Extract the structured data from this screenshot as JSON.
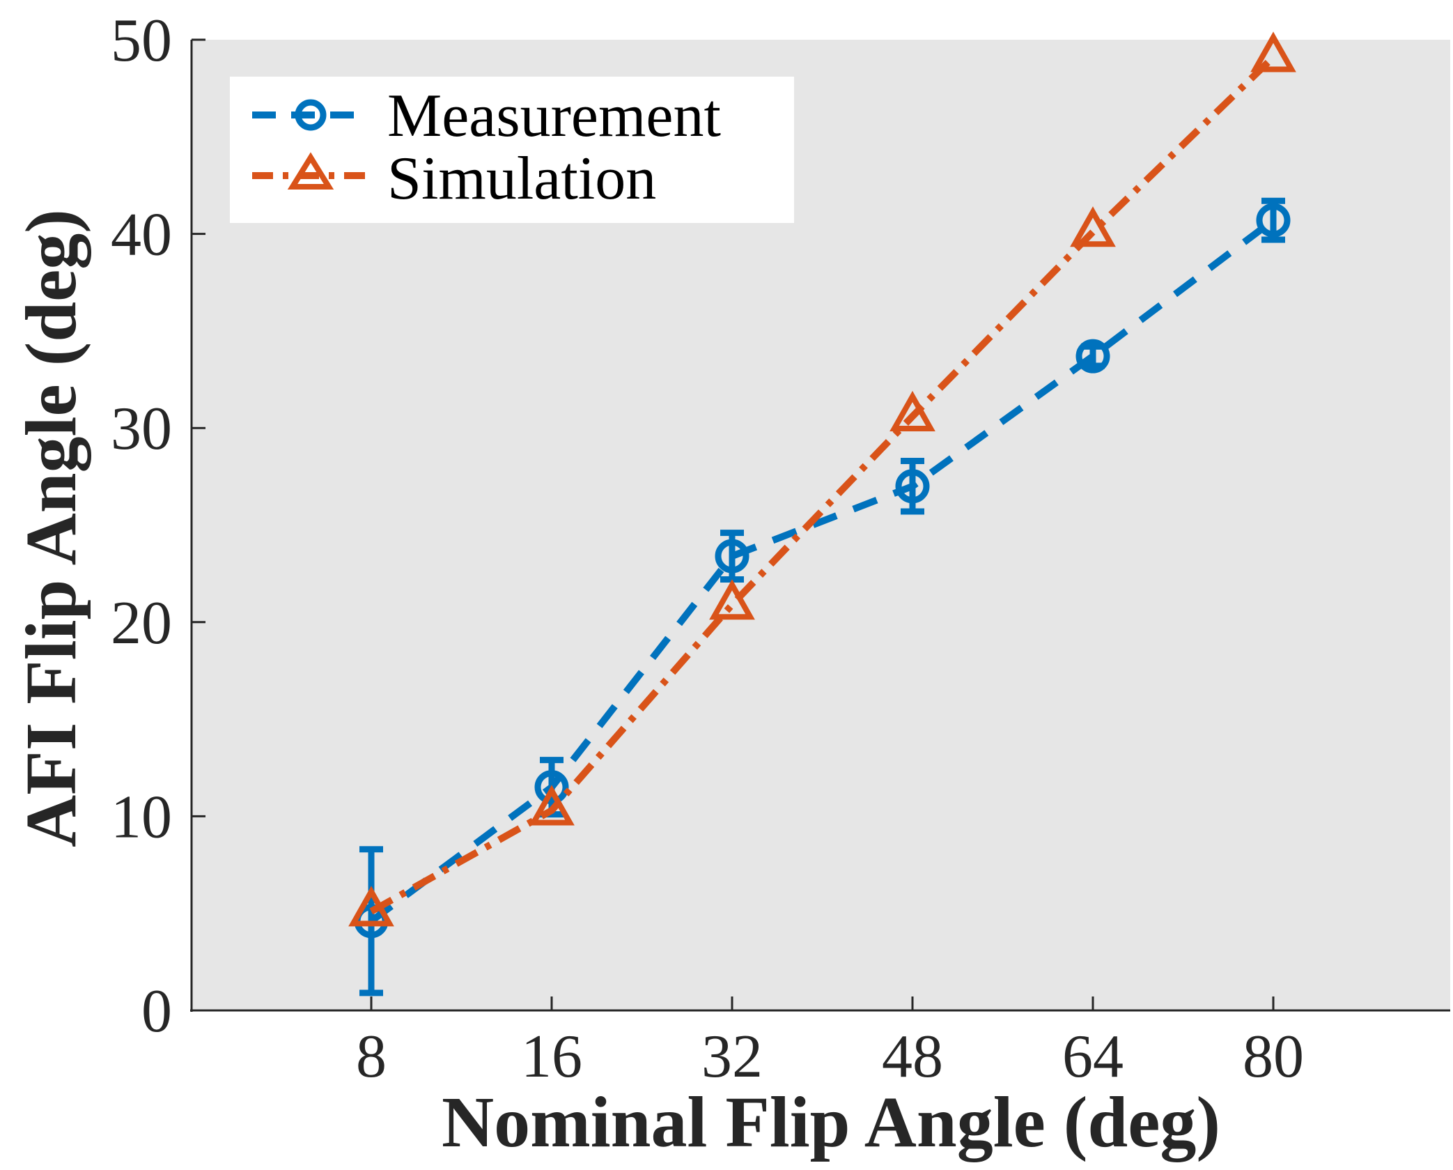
{
  "chart_data": {
    "type": "line",
    "xlabel": "Nominal Flip Angle (deg)",
    "ylabel": "AFI Flip Angle (deg)",
    "categories": [
      "8",
      "16",
      "32",
      "48",
      "64",
      "80"
    ],
    "ylim": [
      0,
      50
    ],
    "yticks": [
      0,
      10,
      20,
      30,
      40,
      50
    ],
    "grid": false,
    "background": "#e6e6e6",
    "legend": {
      "placement": "top-left",
      "entries": [
        "Measurement",
        "Simulation"
      ]
    },
    "series": [
      {
        "name": "Measurement",
        "values": [
          4.6,
          11.5,
          23.4,
          27.0,
          33.7,
          40.7
        ],
        "error": [
          3.7,
          1.4,
          1.2,
          1.3,
          0.5,
          1.0
        ],
        "color": "#0072bd",
        "marker": "circle",
        "line_style": "dashed"
      },
      {
        "name": "Simulation",
        "values": [
          5.1,
          10.3,
          20.9,
          30.6,
          40.1,
          49.1
        ],
        "color": "#d95319",
        "marker": "triangle",
        "line_style": "dash-dot"
      }
    ]
  }
}
